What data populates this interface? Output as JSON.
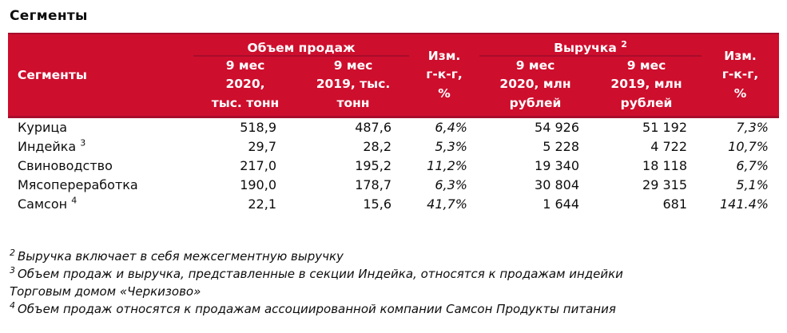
{
  "page_title": "Сегменты",
  "colors": {
    "header_bg": "#CE0E2D",
    "header_border": "#A80D2C",
    "header_text": "#FFFFFF",
    "body_text": "#0D0D0D"
  },
  "table": {
    "header": {
      "segments_label": "Сегменты",
      "group_sales": "Объем продаж",
      "group_revenue": "Выручка",
      "group_revenue_sup": "2",
      "col_sales_2020": "9 мес\n2020,\nтыс. тонн",
      "col_sales_2019": "9 мес\n2019, тыс.\nтонн",
      "col_change_sales": "Изм.\nг-к-г,\n%",
      "col_rev_2020": "9 мес\n2020, млн\nрублей",
      "col_rev_2019": "9 мес\n2019, млн\nрублей",
      "col_change_rev": "Изм.\nг-к-г,\n%"
    },
    "rows": [
      {
        "name": "Курица",
        "sup": "",
        "sales_2020": "518,9",
        "sales_2019": "487,6",
        "sales_change": "6,4%",
        "rev_2020": "54 926",
        "rev_2019": "51 192",
        "rev_change": "7,3%"
      },
      {
        "name": "Индейка",
        "sup": "3",
        "sales_2020": "29,7",
        "sales_2019": "28,2",
        "sales_change": "5,3%",
        "rev_2020": "5 228",
        "rev_2019": "4 722",
        "rev_change": "10,7%"
      },
      {
        "name": "Свиноводство",
        "sup": "",
        "sales_2020": "217,0",
        "sales_2019": "195,2",
        "sales_change": "11,2%",
        "rev_2020": "19 340",
        "rev_2019": "18 118",
        "rev_change": "6,7%"
      },
      {
        "name": "Мясопереработка",
        "sup": "",
        "sales_2020": "190,0",
        "sales_2019": "178,7",
        "sales_change": "6,3%",
        "rev_2020": "30 804",
        "rev_2019": "29 315",
        "rev_change": "5,1%"
      },
      {
        "name": "Самсон",
        "sup": "4",
        "sales_2020": "22,1",
        "sales_2019": "15,6",
        "sales_change": "41,7%",
        "rev_2020": "1 644",
        "rev_2019": "681",
        "rev_change": "141.4%"
      }
    ]
  },
  "footnotes": [
    {
      "sup": "2",
      "text": "Выручка включает в себя межсегментную выручку"
    },
    {
      "sup": "3",
      "text": "Объем продаж и выручка, представленные в секции Индейка, относятся к продажам индейки\nТорговым домом «Черкизово»"
    },
    {
      "sup": "4",
      "text": "Объем продаж относятся к продажам ассоциированной компании Самсон Продукты питания"
    }
  ]
}
